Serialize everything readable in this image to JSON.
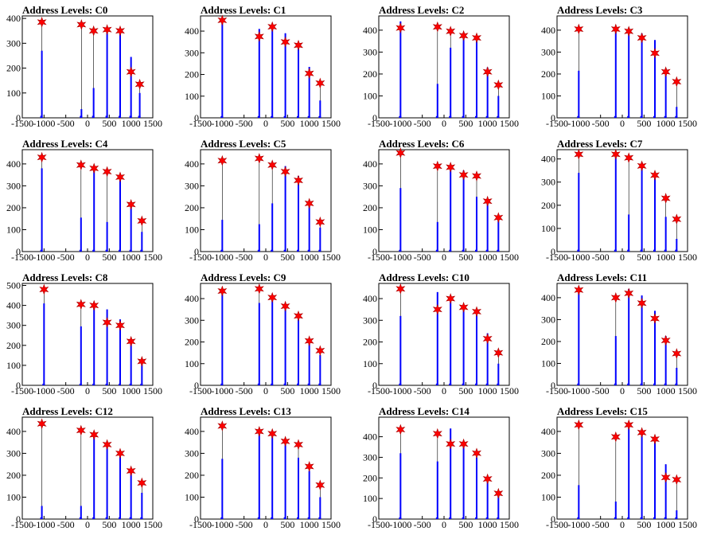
{
  "chart_data": [
    {
      "type": "bar",
      "title": "Address Levels: C0",
      "xlim": [
        -1500,
        1500
      ],
      "ylim": [
        0,
        410
      ],
      "yticks": [
        0,
        100,
        200,
        300,
        400
      ],
      "xticks": [
        -1500,
        -1000,
        -500,
        0,
        500,
        1000,
        1500
      ],
      "peaks_x": [
        -1050,
        -140,
        140,
        450,
        750,
        1000,
        1200
      ],
      "peaks_y": [
        385,
        375,
        350,
        355,
        350,
        185,
        135
      ],
      "bar_heights": [
        270,
        35,
        120,
        355,
        345,
        245,
        100
      ]
    },
    {
      "type": "bar",
      "title": "Address Levels: C1",
      "xlim": [
        -1500,
        1500
      ],
      "ylim": [
        0,
        470
      ],
      "yticks": [
        0,
        100,
        200,
        300,
        400
      ],
      "xticks": [
        -1500,
        -1000,
        -500,
        0,
        500,
        1000,
        1500
      ],
      "peaks_x": [
        -1000,
        -150,
        150,
        450,
        750,
        1000,
        1250
      ],
      "peaks_y": [
        450,
        375,
        420,
        350,
        335,
        205,
        160
      ],
      "bar_heights": [
        450,
        410,
        430,
        390,
        345,
        235,
        80
      ]
    },
    {
      "type": "bar",
      "title": "Address Levels: C2",
      "xlim": [
        -1500,
        1500
      ],
      "ylim": [
        0,
        465
      ],
      "yticks": [
        0,
        100,
        200,
        300,
        400
      ],
      "xticks": [
        -1500,
        -1000,
        -500,
        0,
        500,
        1000,
        1500
      ],
      "peaks_x": [
        -1000,
        -150,
        150,
        450,
        750,
        1000,
        1250
      ],
      "peaks_y": [
        410,
        415,
        395,
        375,
        365,
        210,
        150
      ],
      "bar_heights": [
        440,
        155,
        320,
        370,
        355,
        230,
        100
      ]
    },
    {
      "type": "bar",
      "title": "Address Levels: C3",
      "xlim": [
        -1500,
        1500
      ],
      "ylim": [
        0,
        465
      ],
      "yticks": [
        0,
        100,
        200,
        300,
        400
      ],
      "xticks": [
        -1500,
        -1000,
        -500,
        0,
        500,
        1000,
        1500
      ],
      "peaks_x": [
        -1000,
        -150,
        150,
        450,
        750,
        1000,
        1250
      ],
      "peaks_y": [
        405,
        405,
        395,
        365,
        295,
        210,
        165
      ],
      "bar_heights": [
        215,
        390,
        410,
        385,
        355,
        225,
        50
      ]
    },
    {
      "type": "bar",
      "title": "Address Levels: C4",
      "xlim": [
        -1500,
        1500
      ],
      "ylim": [
        0,
        465
      ],
      "yticks": [
        0,
        100,
        200,
        300,
        400
      ],
      "xticks": [
        -1500,
        -1000,
        -500,
        0,
        500,
        1000,
        1500
      ],
      "peaks_x": [
        -1050,
        -150,
        150,
        450,
        750,
        1000,
        1250
      ],
      "peaks_y": [
        430,
        395,
        380,
        365,
        340,
        215,
        140
      ],
      "bar_heights": [
        380,
        155,
        375,
        135,
        355,
        205,
        90
      ]
    },
    {
      "type": "bar",
      "title": "Address Levels: C5",
      "xlim": [
        -1500,
        1500
      ],
      "ylim": [
        0,
        465
      ],
      "yticks": [
        0,
        100,
        200,
        300,
        400
      ],
      "xticks": [
        -1500,
        -1000,
        -500,
        0,
        500,
        1000,
        1500
      ],
      "peaks_x": [
        -1000,
        -150,
        150,
        450,
        750,
        1000,
        1250
      ],
      "peaks_y": [
        415,
        425,
        395,
        365,
        325,
        220,
        135
      ],
      "bar_heights": [
        145,
        125,
        220,
        390,
        345,
        235,
        110
      ]
    },
    {
      "type": "bar",
      "title": "Address Levels: C6",
      "xlim": [
        -1500,
        1500
      ],
      "ylim": [
        0,
        465
      ],
      "yticks": [
        0,
        100,
        200,
        300,
        400
      ],
      "xticks": [
        -1500,
        -1000,
        -500,
        0,
        500,
        1000,
        1500
      ],
      "peaks_x": [
        -1000,
        -150,
        150,
        450,
        750,
        1000,
        1250
      ],
      "peaks_y": [
        450,
        390,
        385,
        350,
        345,
        230,
        155
      ],
      "bar_heights": [
        290,
        135,
        380,
        370,
        250,
        230,
        140
      ]
    },
    {
      "type": "bar",
      "title": "Address Levels: C7",
      "xlim": [
        -1500,
        1500
      ],
      "ylim": [
        0,
        440
      ],
      "yticks": [
        0,
        100,
        200,
        300,
        400
      ],
      "xticks": [
        -1500,
        -1000,
        -500,
        0,
        500,
        1000,
        1500
      ],
      "peaks_x": [
        -1000,
        -150,
        150,
        450,
        750,
        1000,
        1250
      ],
      "peaks_y": [
        420,
        420,
        405,
        370,
        330,
        230,
        140
      ],
      "bar_heights": [
        340,
        415,
        160,
        385,
        330,
        150,
        55
      ]
    },
    {
      "type": "bar",
      "title": "Address Levels: C8",
      "xlim": [
        -1500,
        1500
      ],
      "ylim": [
        0,
        510
      ],
      "yticks": [
        0,
        100,
        200,
        300,
        400,
        500
      ],
      "xticks": [
        -1500,
        -1000,
        -500,
        0,
        500,
        1000,
        1500
      ],
      "peaks_x": [
        -1000,
        -150,
        150,
        450,
        750,
        1000,
        1250
      ],
      "peaks_y": [
        480,
        405,
        400,
        315,
        300,
        220,
        120
      ],
      "bar_heights": [
        410,
        295,
        400,
        380,
        330,
        205,
        130
      ]
    },
    {
      "type": "bar",
      "title": "Address Levels: C9",
      "xlim": [
        -1500,
        1500
      ],
      "ylim": [
        0,
        470
      ],
      "yticks": [
        0,
        100,
        200,
        300,
        400
      ],
      "xticks": [
        -1500,
        -1000,
        -500,
        0,
        500,
        1000,
        1500
      ],
      "peaks_x": [
        -1000,
        -150,
        150,
        450,
        750,
        1000,
        1250
      ],
      "peaks_y": [
        435,
        445,
        405,
        365,
        320,
        205,
        160
      ],
      "bar_heights": [
        420,
        380,
        405,
        350,
        325,
        200,
        140
      ]
    },
    {
      "type": "bar",
      "title": "Address Levels: C10",
      "xlim": [
        -1500,
        1500
      ],
      "ylim": [
        0,
        470
      ],
      "yticks": [
        0,
        100,
        200,
        300,
        400
      ],
      "xticks": [
        -1500,
        -1000,
        -500,
        0,
        500,
        1000,
        1500
      ],
      "peaks_x": [
        -1000,
        -150,
        150,
        450,
        750,
        1000,
        1250
      ],
      "peaks_y": [
        445,
        350,
        400,
        360,
        340,
        215,
        150
      ],
      "bar_heights": [
        320,
        430,
        385,
        370,
        345,
        240,
        100
      ]
    },
    {
      "type": "bar",
      "title": "Address Levels: C11",
      "xlim": [
        -1500,
        1500
      ],
      "ylim": [
        0,
        465
      ],
      "yticks": [
        0,
        100,
        200,
        300,
        400
      ],
      "xticks": [
        -1500,
        -1000,
        -500,
        0,
        500,
        1000,
        1500
      ],
      "peaks_x": [
        -1000,
        -150,
        150,
        450,
        750,
        1000,
        1250
      ],
      "peaks_y": [
        435,
        400,
        420,
        375,
        305,
        205,
        145
      ],
      "bar_heights": [
        440,
        225,
        440,
        410,
        340,
        225,
        80
      ]
    },
    {
      "type": "bar",
      "title": "Address Levels: C12",
      "xlim": [
        -1500,
        1500
      ],
      "ylim": [
        0,
        465
      ],
      "yticks": [
        0,
        100,
        200,
        300,
        400
      ],
      "xticks": [
        -1500,
        -1000,
        -500,
        0,
        500,
        1000,
        1500
      ],
      "peaks_x": [
        -1050,
        -150,
        150,
        450,
        750,
        1000,
        1250
      ],
      "peaks_y": [
        435,
        405,
        385,
        340,
        300,
        220,
        165
      ],
      "bar_heights": [
        60,
        60,
        380,
        330,
        300,
        210,
        120
      ]
    },
    {
      "type": "bar",
      "title": "Address Levels: C13",
      "xlim": [
        -1500,
        1500
      ],
      "ylim": [
        0,
        465
      ],
      "yticks": [
        0,
        100,
        200,
        300,
        400
      ],
      "xticks": [
        -1500,
        -1000,
        -500,
        0,
        500,
        1000,
        1500
      ],
      "peaks_x": [
        -1000,
        -150,
        150,
        450,
        750,
        1000,
        1250
      ],
      "peaks_y": [
        425,
        400,
        390,
        355,
        340,
        240,
        155
      ],
      "bar_heights": [
        275,
        390,
        375,
        340,
        280,
        220,
        100
      ]
    },
    {
      "type": "bar",
      "title": "Address Levels: C14",
      "xlim": [
        -1500,
        1500
      ],
      "ylim": [
        0,
        495
      ],
      "yticks": [
        0,
        100,
        200,
        300,
        400
      ],
      "xticks": [
        -1500,
        -1000,
        -500,
        0,
        500,
        1000,
        1500
      ],
      "peaks_x": [
        -1000,
        -150,
        150,
        450,
        750,
        1000,
        1250
      ],
      "peaks_y": [
        435,
        415,
        365,
        365,
        320,
        195,
        125
      ],
      "bar_heights": [
        320,
        280,
        440,
        360,
        300,
        210,
        120
      ]
    },
    {
      "type": "bar",
      "title": "Address Levels: C15",
      "xlim": [
        -1500,
        1500
      ],
      "ylim": [
        0,
        465
      ],
      "yticks": [
        0,
        100,
        200,
        300,
        400
      ],
      "xticks": [
        -1500,
        -1000,
        -500,
        0,
        500,
        1000,
        1500
      ],
      "peaks_x": [
        -1000,
        -150,
        150,
        450,
        750,
        1000,
        1250
      ],
      "peaks_y": [
        430,
        375,
        430,
        395,
        365,
        190,
        180
      ],
      "bar_heights": [
        155,
        80,
        415,
        405,
        355,
        250,
        40
      ]
    }
  ],
  "colors": {
    "bars": "#0000ff",
    "markers": "#ff0000",
    "axes": "#000000",
    "marker-name": "star"
  }
}
